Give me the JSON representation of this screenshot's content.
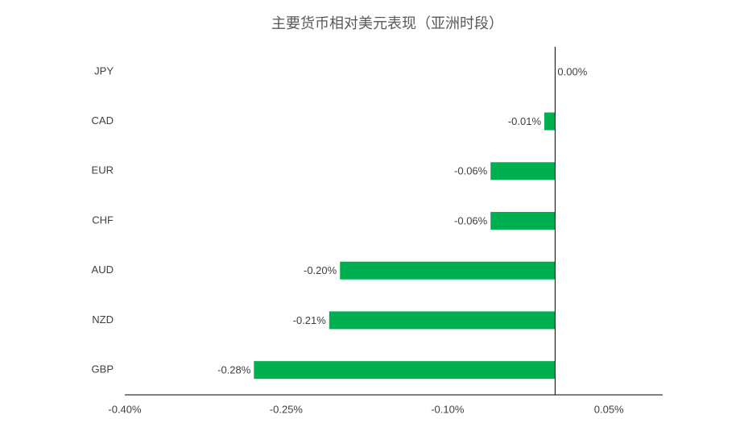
{
  "chart_data": {
    "type": "hbar",
    "title": "主要货币相对美元表现（亚洲时段）",
    "categories": [
      "JPY",
      "CAD",
      "EUR",
      "CHF",
      "AUD",
      "NZD",
      "GBP"
    ],
    "values": [
      0,
      -0.01,
      -0.06,
      -0.06,
      -0.2,
      -0.21,
      -0.28
    ],
    "value_labels": [
      "0.00%",
      "-0.01%",
      "-0.06%",
      "-0.06%",
      "-0.20%",
      "-0.21%",
      "-0.28%"
    ],
    "color": "#00b050",
    "xlim": [
      -0.4,
      0.1
    ],
    "xticks": [
      {
        "value": -0.4,
        "label": "-0.40%"
      },
      {
        "value": -0.25,
        "label": "-0.25%"
      },
      {
        "value": -0.1,
        "label": "-0.10%"
      },
      {
        "value": 0.05,
        "label": "0.05%"
      }
    ],
    "grid": false
  }
}
